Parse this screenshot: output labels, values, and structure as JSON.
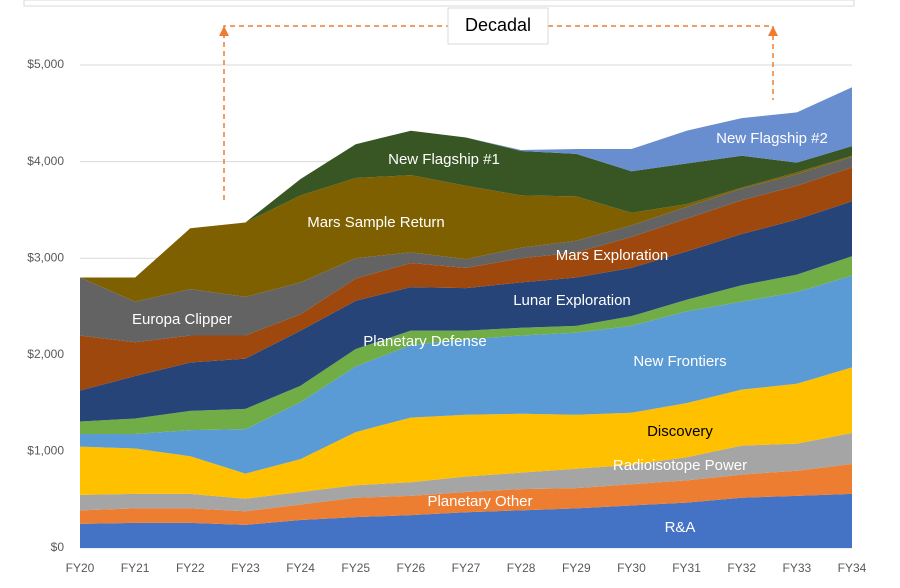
{
  "chart_data": {
    "type": "stacked-area",
    "annotation": "Decadal",
    "categories": [
      "FY20",
      "FY21",
      "FY22",
      "FY23",
      "FY24",
      "FY25",
      "FY26",
      "FY27",
      "FY28",
      "FY29",
      "FY30",
      "FY31",
      "FY32",
      "FY33",
      "FY34"
    ],
    "ylim": [
      0,
      5000
    ],
    "yticks": [
      {
        "value": 0,
        "label": "$0"
      },
      {
        "value": 1000,
        "label": "$1,000"
      },
      {
        "value": 2000,
        "label": "$2,000"
      },
      {
        "value": 3000,
        "label": "$3,000"
      },
      {
        "value": 4000,
        "label": "$4,000"
      },
      {
        "value": 5000,
        "label": "$5,000"
      }
    ],
    "grid": true,
    "series": [
      {
        "name": "R&A",
        "color": "#4472c4",
        "values": [
          250,
          260,
          260,
          240,
          290,
          320,
          340,
          370,
          390,
          410,
          440,
          470,
          520,
          540,
          560
        ]
      },
      {
        "name": "Planetary Other",
        "color": "#ed7d31",
        "values": [
          140,
          150,
          150,
          140,
          160,
          200,
          200,
          210,
          220,
          210,
          220,
          230,
          240,
          260,
          310
        ]
      },
      {
        "name": "Radioisotope Power",
        "color": "#a5a5a5",
        "values": [
          160,
          150,
          150,
          130,
          130,
          130,
          140,
          160,
          170,
          200,
          200,
          240,
          300,
          280,
          320
        ]
      },
      {
        "name": "Discovery",
        "color": "#ffc000",
        "values": [
          500,
          470,
          390,
          260,
          340,
          550,
          670,
          640,
          610,
          560,
          540,
          560,
          580,
          620,
          680
        ]
      },
      {
        "name": "New Frontiers",
        "color": "#5b9bd5",
        "values": [
          130,
          150,
          270,
          460,
          590,
          680,
          750,
          780,
          810,
          850,
          900,
          950,
          910,
          950,
          950
        ]
      },
      {
        "name": "Planetary Defense",
        "color": "#70ad47",
        "values": [
          130,
          160,
          200,
          210,
          170,
          180,
          150,
          90,
          80,
          70,
          100,
          120,
          170,
          180,
          200
        ]
      },
      {
        "name": "Lunar Exploration",
        "color": "#264478",
        "values": [
          320,
          440,
          500,
          520,
          570,
          500,
          450,
          440,
          470,
          500,
          500,
          500,
          530,
          570,
          570
        ]
      },
      {
        "name": "Mars Exploration",
        "color": "#9e480e",
        "values": [
          570,
          350,
          280,
          240,
          170,
          230,
          250,
          210,
          250,
          260,
          320,
          340,
          350,
          350,
          350
        ]
      },
      {
        "name": "Europa Clipper",
        "color": "#636363",
        "values": [
          600,
          420,
          480,
          400,
          330,
          210,
          110,
          90,
          110,
          120,
          120,
          120,
          120,
          120,
          110
        ]
      },
      {
        "name": "Mars Sample Return",
        "color": "#7f6000",
        "values": [
          0,
          250,
          630,
          770,
          900,
          830,
          800,
          760,
          540,
          460,
          130,
          30,
          10,
          20,
          10
        ]
      },
      {
        "name": "New Flagship #1",
        "color": "#375623",
        "values": [
          0,
          0,
          0,
          0,
          170,
          350,
          460,
          500,
          460,
          440,
          430,
          420,
          330,
          100,
          100
        ]
      },
      {
        "name": "New Flagship #2",
        "color": "#698ed0",
        "values": [
          0,
          0,
          0,
          0,
          0,
          0,
          0,
          0,
          10,
          50,
          230,
          340,
          390,
          520,
          610
        ]
      }
    ]
  }
}
